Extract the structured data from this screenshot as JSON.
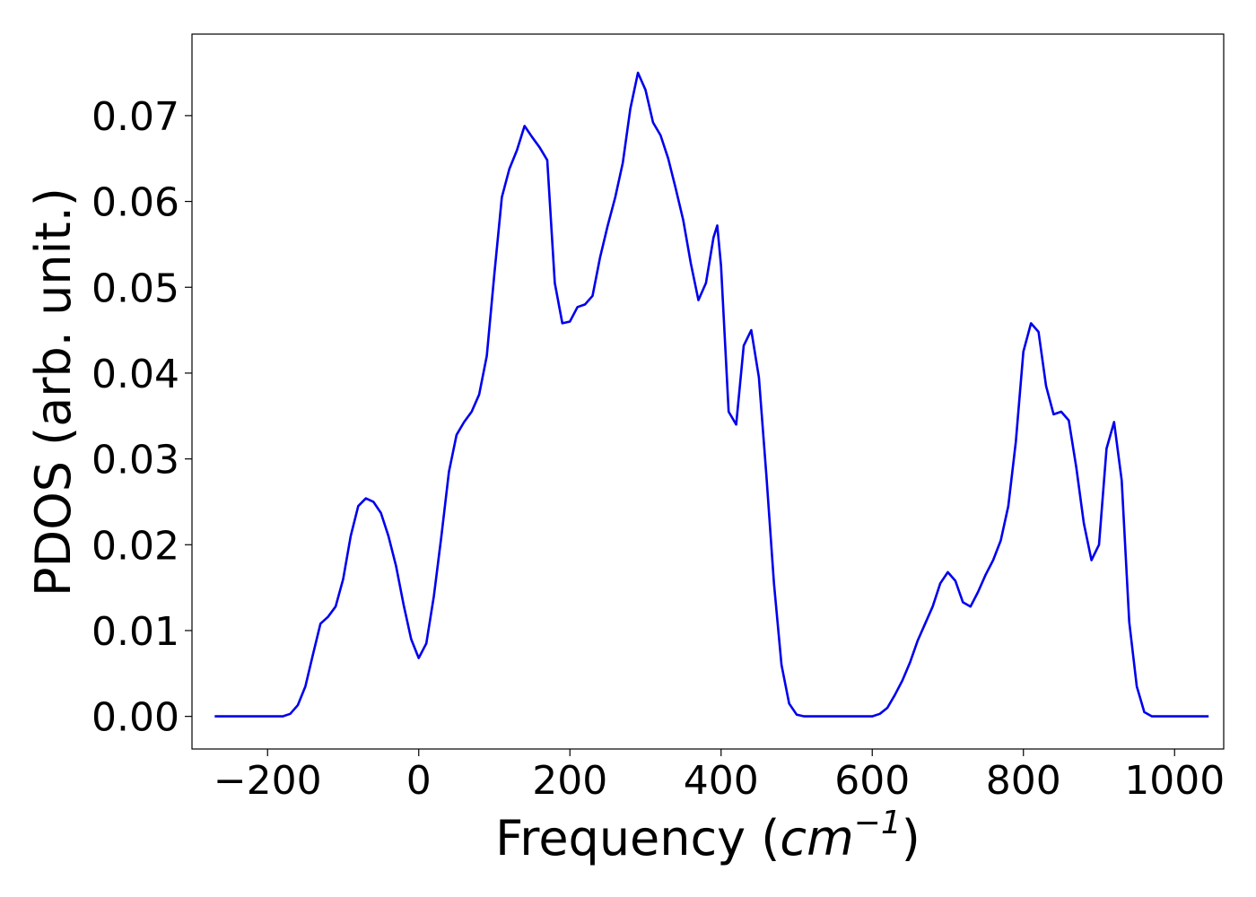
{
  "chart_data": {
    "type": "line",
    "title": "",
    "xlabel": "Frequency",
    "xlabel_unit_base": "cm",
    "xlabel_unit_exp": "−1",
    "ylabel": "PDOS (arb. unit.)",
    "xlim": [
      -300,
      1065
    ],
    "ylim": [
      -0.0038,
      0.0795
    ],
    "xticks": [
      -200,
      0,
      200,
      400,
      600,
      800,
      1000
    ],
    "xtick_labels": [
      "−200",
      "0",
      "200",
      "400",
      "600",
      "800",
      "1000"
    ],
    "yticks": [
      0.0,
      0.01,
      0.02,
      0.03,
      0.04,
      0.05,
      0.06,
      0.07
    ],
    "ytick_labels": [
      "0.00",
      "0.01",
      "0.02",
      "0.03",
      "0.04",
      "0.05",
      "0.06",
      "0.07"
    ],
    "grid": false,
    "legend": "none",
    "series": [
      {
        "color": "#0000ee",
        "x": [
          -270,
          -180,
          -170,
          -160,
          -150,
          -140,
          -130,
          -120,
          -110,
          -100,
          -90,
          -80,
          -70,
          -60,
          -50,
          -40,
          -30,
          -20,
          -10,
          0,
          10,
          20,
          30,
          40,
          50,
          60,
          70,
          80,
          90,
          100,
          110,
          120,
          130,
          140,
          150,
          160,
          170,
          180,
          190,
          200,
          210,
          220,
          230,
          240,
          250,
          260,
          270,
          280,
          290,
          300,
          310,
          320,
          330,
          340,
          350,
          360,
          370,
          380,
          390,
          395,
          400,
          410,
          420,
          430,
          440,
          450,
          460,
          470,
          480,
          490,
          500,
          510,
          600,
          610,
          620,
          630,
          640,
          650,
          660,
          670,
          680,
          690,
          700,
          710,
          720,
          730,
          740,
          750,
          760,
          770,
          780,
          790,
          800,
          810,
          820,
          830,
          840,
          850,
          860,
          870,
          880,
          890,
          900,
          910,
          920,
          930,
          940,
          950,
          960,
          970,
          1045
        ],
        "y": [
          0.0,
          0.0,
          0.0003,
          0.0013,
          0.0035,
          0.0072,
          0.0108,
          0.0116,
          0.0128,
          0.016,
          0.021,
          0.0245,
          0.0254,
          0.025,
          0.0237,
          0.021,
          0.0175,
          0.013,
          0.009,
          0.0068,
          0.0085,
          0.014,
          0.021,
          0.0285,
          0.0328,
          0.0343,
          0.0355,
          0.0375,
          0.042,
          0.0515,
          0.0605,
          0.0638,
          0.066,
          0.0688,
          0.0675,
          0.0663,
          0.0648,
          0.0505,
          0.0458,
          0.046,
          0.0477,
          0.048,
          0.049,
          0.0535,
          0.0572,
          0.0605,
          0.0645,
          0.0708,
          0.075,
          0.073,
          0.0692,
          0.0677,
          0.065,
          0.0615,
          0.0578,
          0.0528,
          0.0485,
          0.0505,
          0.0558,
          0.0572,
          0.0525,
          0.0355,
          0.034,
          0.0432,
          0.045,
          0.0395,
          0.028,
          0.0155,
          0.006,
          0.0015,
          0.0002,
          0.0,
          0.0,
          0.0003,
          0.001,
          0.0025,
          0.0042,
          0.0063,
          0.0088,
          0.0108,
          0.0128,
          0.0155,
          0.0168,
          0.0158,
          0.0133,
          0.0128,
          0.0145,
          0.0165,
          0.0182,
          0.0205,
          0.0245,
          0.032,
          0.0425,
          0.0458,
          0.0448,
          0.0385,
          0.0352,
          0.0355,
          0.0345,
          0.029,
          0.0225,
          0.0182,
          0.02,
          0.0312,
          0.0343,
          0.0275,
          0.011,
          0.0035,
          0.0005,
          0.0,
          0.0
        ]
      }
    ]
  }
}
